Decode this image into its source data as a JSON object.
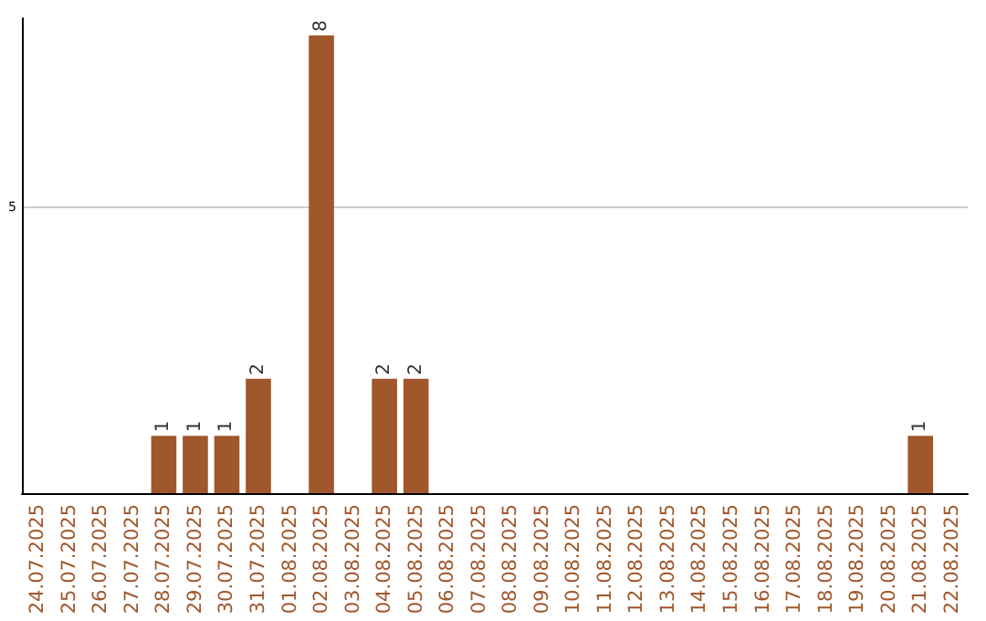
{
  "chart_data": {
    "type": "bar",
    "categories": [
      "24.07.2025",
      "25.07.2025",
      "26.07.2025",
      "27.07.2025",
      "28.07.2025",
      "29.07.2025",
      "30.07.2025",
      "31.07.2025",
      "01.08.2025",
      "02.08.2025",
      "03.08.2025",
      "04.08.2025",
      "05.08.2025",
      "06.08.2025",
      "07.08.2025",
      "08.08.2025",
      "09.08.2025",
      "10.08.2025",
      "11.08.2025",
      "12.08.2025",
      "13.08.2025",
      "14.08.2025",
      "15.08.2025",
      "16.08.2025",
      "17.08.2025",
      "18.08.2025",
      "19.08.2025",
      "20.08.2025",
      "21.08.2025",
      "22.08.2025"
    ],
    "values": [
      0,
      0,
      0,
      0,
      1,
      1,
      1,
      2,
      0,
      8,
      0,
      2,
      2,
      0,
      0,
      0,
      0,
      0,
      0,
      0,
      0,
      0,
      0,
      0,
      0,
      0,
      0,
      0,
      1,
      0
    ],
    "value_labels": [
      null,
      null,
      null,
      null,
      "1",
      "1",
      "1",
      "2",
      null,
      "8",
      null,
      "2",
      "2",
      null,
      null,
      null,
      null,
      null,
      null,
      null,
      null,
      null,
      null,
      null,
      null,
      null,
      null,
      null,
      "1",
      null
    ],
    "color": "#a0572b",
    "ylim": [
      0,
      8.3
    ],
    "yticks": [
      5
    ],
    "grid": "y"
  }
}
